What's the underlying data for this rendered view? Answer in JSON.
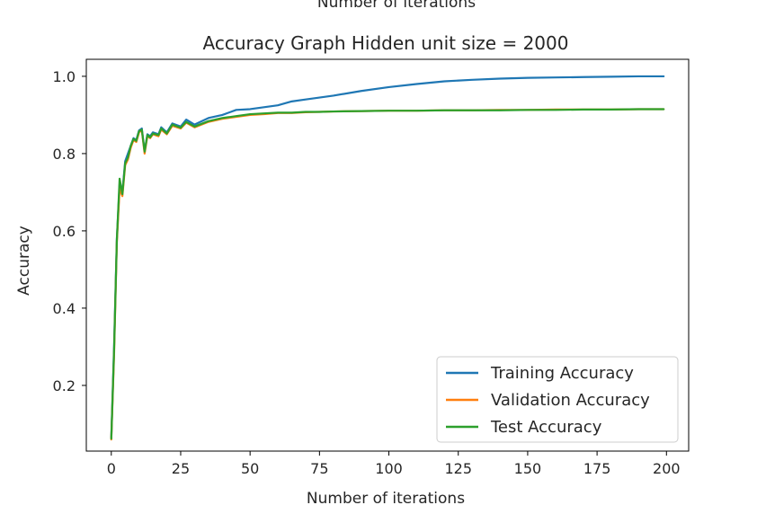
{
  "page": {
    "clipped_top_text": "Number of iterations"
  },
  "chart_data": {
    "type": "line",
    "title": "Accuracy Graph Hidden unit size = 2000",
    "xlabel": "Number of iterations",
    "ylabel": "Accuracy",
    "xlim": [
      -9,
      208
    ],
    "ylim": [
      0.03,
      1.044
    ],
    "xticks": [
      0,
      25,
      50,
      75,
      100,
      125,
      150,
      175,
      200
    ],
    "yticks": [
      0.2,
      0.4,
      0.6,
      0.8,
      1.0
    ],
    "ytick_labels": [
      "0.2",
      "0.4",
      "0.6",
      "0.8",
      "1.0"
    ],
    "grid": false,
    "legend_position": "lower-right",
    "series": [
      {
        "name": "Training Accuracy",
        "color": "#1f77b4",
        "x": [
          0,
          1,
          2,
          3,
          4,
          5,
          6,
          7,
          8,
          9,
          10,
          11,
          12,
          13,
          14,
          15,
          17,
          18,
          20,
          22,
          25,
          27,
          30,
          35,
          40,
          45,
          50,
          55,
          60,
          65,
          70,
          75,
          80,
          90,
          100,
          110,
          120,
          130,
          140,
          150,
          160,
          170,
          180,
          190,
          199
        ],
        "y": [
          0.065,
          0.3,
          0.58,
          0.72,
          0.7,
          0.78,
          0.8,
          0.82,
          0.84,
          0.835,
          0.86,
          0.865,
          0.805,
          0.85,
          0.845,
          0.855,
          0.85,
          0.868,
          0.855,
          0.878,
          0.87,
          0.888,
          0.875,
          0.892,
          0.9,
          0.913,
          0.915,
          0.92,
          0.925,
          0.935,
          0.94,
          0.945,
          0.95,
          0.962,
          0.972,
          0.98,
          0.987,
          0.991,
          0.994,
          0.996,
          0.997,
          0.998,
          0.999,
          1.0,
          1.0
        ]
      },
      {
        "name": "Validation Accuracy",
        "color": "#ff7f0e",
        "x": [
          0,
          1,
          2,
          3,
          4,
          5,
          6,
          7,
          8,
          9,
          10,
          11,
          12,
          13,
          14,
          15,
          17,
          18,
          20,
          22,
          25,
          27,
          30,
          35,
          40,
          45,
          50,
          55,
          60,
          65,
          70,
          75,
          80,
          90,
          100,
          110,
          120,
          130,
          140,
          150,
          160,
          170,
          180,
          190,
          199
        ],
        "y": [
          0.06,
          0.28,
          0.57,
          0.71,
          0.69,
          0.77,
          0.785,
          0.815,
          0.835,
          0.83,
          0.855,
          0.86,
          0.8,
          0.845,
          0.84,
          0.85,
          0.845,
          0.862,
          0.85,
          0.872,
          0.865,
          0.88,
          0.868,
          0.882,
          0.89,
          0.895,
          0.9,
          0.902,
          0.905,
          0.905,
          0.907,
          0.908,
          0.909,
          0.91,
          0.911,
          0.911,
          0.912,
          0.912,
          0.913,
          0.913,
          0.914,
          0.914,
          0.914,
          0.915,
          0.915
        ]
      },
      {
        "name": "Test Accuracy",
        "color": "#2ca02c",
        "x": [
          0,
          1,
          2,
          3,
          4,
          5,
          6,
          7,
          8,
          9,
          10,
          11,
          12,
          13,
          14,
          15,
          17,
          18,
          20,
          22,
          25,
          27,
          30,
          35,
          40,
          45,
          50,
          55,
          60,
          65,
          70,
          75,
          80,
          90,
          100,
          110,
          120,
          130,
          140,
          150,
          160,
          170,
          180,
          190,
          199
        ],
        "y": [
          0.062,
          0.29,
          0.575,
          0.735,
          0.695,
          0.775,
          0.79,
          0.82,
          0.838,
          0.833,
          0.858,
          0.862,
          0.805,
          0.848,
          0.842,
          0.852,
          0.848,
          0.865,
          0.852,
          0.875,
          0.867,
          0.882,
          0.87,
          0.884,
          0.892,
          0.897,
          0.902,
          0.904,
          0.906,
          0.906,
          0.908,
          0.908,
          0.909,
          0.91,
          0.911,
          0.911,
          0.912,
          0.912,
          0.912,
          0.913,
          0.913,
          0.914,
          0.914,
          0.915,
          0.915
        ]
      }
    ]
  }
}
